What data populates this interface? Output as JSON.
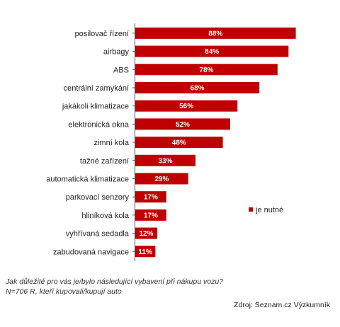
{
  "chart_data": {
    "type": "bar",
    "orientation": "horizontal",
    "categories": [
      "posilovač řízení",
      "airbagy",
      "ABS",
      "centrální zamykání",
      "jakákoli klimatizace",
      "elektronická okna",
      "zimní kola",
      "tažné zařízení",
      "automatická klimatizace",
      "parkovací senzory",
      "hliníková kola",
      "vyhřívaná sedadla",
      "zabudovaná navigace"
    ],
    "values": [
      88,
      84,
      78,
      68,
      56,
      52,
      48,
      33,
      29,
      17,
      17,
      12,
      11
    ],
    "value_labels": [
      "88%",
      "84%",
      "78%",
      "68%",
      "56%",
      "52%",
      "48%",
      "33%",
      "29%",
      "17%",
      "17%",
      "12%",
      "11%"
    ],
    "series": [
      {
        "name": "je nutné",
        "values": [
          88,
          84,
          78,
          68,
          56,
          52,
          48,
          33,
          29,
          17,
          17,
          12,
          11
        ]
      }
    ],
    "xlim": [
      0,
      100
    ],
    "grid": false,
    "legend": "right",
    "color": "#c00000"
  },
  "footer": {
    "question": "Jak důležité pro vás je/bylo následující vybavení při nákupu vozu?",
    "sample": "N=706 R, kteří kupovali/kupují auto",
    "source": "Zdroj: Seznam.cz Výzkumník"
  }
}
